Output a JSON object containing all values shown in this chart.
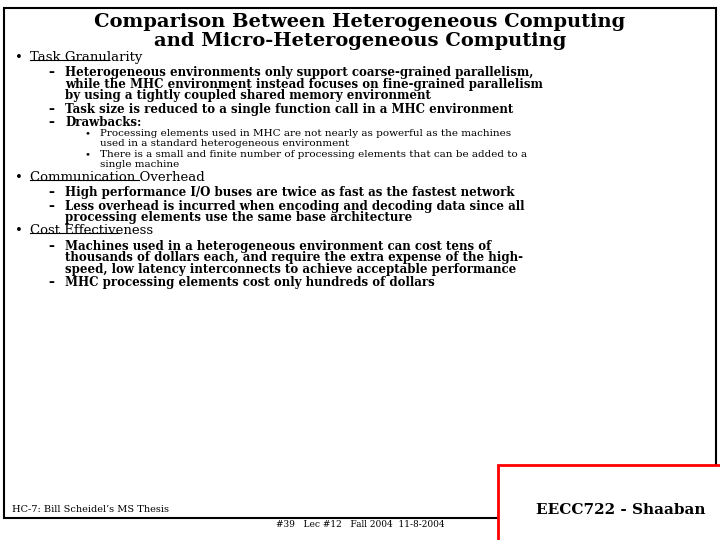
{
  "title_line1": "Comparison Between Heterogeneous Computing",
  "title_line2": "and Micro-Heterogeneous Computing",
  "background_color": "#ffffff",
  "border_color": "#000000",
  "text_color": "#000000",
  "footer_left": "HC-7: Bill Scheidel’s MS Thesis",
  "footer_center": "#39   Lec #12   Fall 2004  11-8-2004",
  "footer_right": "EECC722 - Shaaban",
  "title_fontsize": 14,
  "bullet0_fontsize": 9.5,
  "bullet1_fontsize": 8.5,
  "bullet2_fontsize": 7.5,
  "content": [
    {
      "level": 0,
      "text": "Task Granularity",
      "underline": true,
      "bold": false,
      "lines": 1
    },
    {
      "level": 1,
      "text": "Heterogeneous environments only support coarse-grained parallelism,\nwhile the MHC environment instead focuses on fine-grained parallelism\nby using a tightly coupled shared memory environment",
      "bold": true,
      "lines": 3
    },
    {
      "level": 1,
      "text": "Task size is reduced to a single function call in a MHC environment",
      "bold": true,
      "lines": 1
    },
    {
      "level": 1,
      "text": "Drawbacks:",
      "bold": true,
      "lines": 1
    },
    {
      "level": 2,
      "text": "Processing elements used in MHC are not nearly as powerful as the machines\nused in a standard heterogeneous environment",
      "bold": false,
      "lines": 2
    },
    {
      "level": 2,
      "text": "There is a small and finite number of processing elements that can be added to a\nsingle machine",
      "bold": false,
      "lines": 2
    },
    {
      "level": 0,
      "text": "Communication Overhead",
      "underline": true,
      "bold": false,
      "lines": 1
    },
    {
      "level": 1,
      "text": "High performance I/O buses are twice as fast as the fastest network",
      "bold": true,
      "lines": 1
    },
    {
      "level": 1,
      "text": "Less overhead is incurred when encoding and decoding data since all\nprocessing elements use the same base architecture",
      "bold": true,
      "lines": 2
    },
    {
      "level": 0,
      "text": "Cost Effectiveness",
      "underline": true,
      "bold": false,
      "lines": 1
    },
    {
      "level": 1,
      "text": "Machines used in a heterogeneous environment can cost tens of\nthousands of dollars each, and require the extra expense of the high-\nspeed, low latency interconnects to achieve acceptable performance",
      "bold": true,
      "lines": 3
    },
    {
      "level": 1,
      "text": "MHC processing elements cost only hundreds of dollars",
      "bold": true,
      "lines": 1
    }
  ]
}
